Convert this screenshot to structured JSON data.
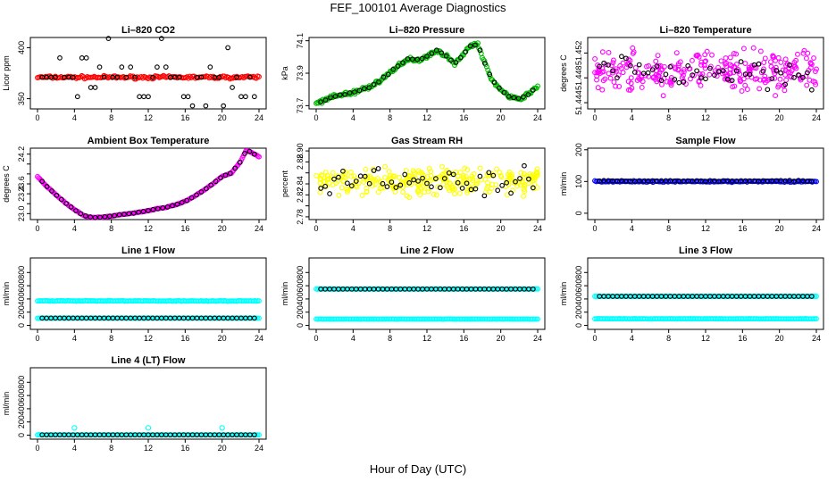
{
  "title": "FEF_100101  Average Diagnostics",
  "xlabel": "Hour of Day (UTC)",
  "colors": {
    "black": "#000000",
    "red": "#ff0000",
    "green": "#00bb00",
    "magenta": "#ff00ff",
    "yellow": "#ffff00",
    "blue": "#0000ff",
    "cyan": "#00ffff"
  },
  "chart_data": [
    {
      "type": "scatter",
      "title": "Li–820 CO2",
      "ylabel": "Licor ppm",
      "xlim": [
        0,
        24
      ],
      "xticks": [
        0,
        4,
        8,
        12,
        16,
        20,
        24
      ],
      "ylim": [
        340,
        410
      ],
      "yticks": [
        350,
        400
      ],
      "ytick_labels": [
        "350",
        "400"
      ],
      "series": [
        {
          "color": "red",
          "pattern": "band",
          "center": 371,
          "spread": 2
        },
        {
          "color": "black",
          "pattern": "discrete",
          "levels": [
            343,
            352,
            361,
            371,
            381,
            390,
            400,
            409
          ],
          "weights": [
            2,
            3,
            1,
            6,
            1,
            3,
            1,
            3
          ]
        }
      ]
    },
    {
      "type": "scatter",
      "title": "Li–820 Pressure",
      "ylabel": "kPa",
      "xlim": [
        0,
        24
      ],
      "xticks": [
        0,
        4,
        8,
        12,
        16,
        20,
        24
      ],
      "ylim": [
        73.68,
        74.12
      ],
      "yticks": [
        73.7,
        73.9,
        74.1
      ],
      "ytick_labels": [
        "73.7",
        "73.9",
        "74.1"
      ],
      "series": [
        {
          "color": "green",
          "pattern": "curve",
          "spread": 0.015,
          "x": [
            0,
            2,
            4,
            6,
            7,
            8,
            9,
            10,
            11,
            12,
            13,
            14,
            15,
            16,
            16.7,
            17.5,
            18,
            19,
            20,
            21,
            22,
            23,
            24
          ],
          "y": [
            73.71,
            73.76,
            73.78,
            73.82,
            73.86,
            73.9,
            73.95,
            73.99,
            73.98,
            74.0,
            74.04,
            74.01,
            73.96,
            74.02,
            74.07,
            74.08,
            74.0,
            73.86,
            73.8,
            73.75,
            73.74,
            73.77,
            73.82
          ]
        },
        {
          "color": "black",
          "pattern": "curve-sparse",
          "spread": 0.01,
          "x": [
            0,
            2,
            4,
            6,
            7,
            8,
            9,
            10,
            11,
            12,
            13,
            14,
            15,
            16,
            16.7,
            17.5,
            18,
            19,
            20,
            21,
            22,
            23,
            24
          ],
          "y": [
            73.71,
            73.76,
            73.78,
            73.82,
            73.86,
            73.9,
            73.95,
            73.99,
            73.98,
            74.0,
            74.04,
            74.01,
            73.96,
            74.02,
            74.07,
            74.08,
            74.0,
            73.86,
            73.8,
            73.75,
            73.74,
            73.77,
            73.82
          ]
        }
      ]
    },
    {
      "type": "scatter",
      "title": "Li–820 Temperature",
      "ylabel": "degrees C",
      "xlim": [
        0,
        24
      ],
      "xticks": [
        0,
        4,
        8,
        12,
        16,
        20,
        24
      ],
      "ylim": [
        51.443,
        51.4545
      ],
      "yticks": [
        51.444,
        51.448,
        51.452
      ],
      "ytick_labels": [
        "51.444",
        "51.448",
        "51.452"
      ],
      "series": [
        {
          "color": "magenta",
          "pattern": "noise",
          "center": 51.449,
          "spread": 0.0045
        },
        {
          "color": "black",
          "pattern": "noise-sparse",
          "center": 51.449,
          "spread": 0.004
        }
      ]
    },
    {
      "type": "scatter",
      "title": "Ambient Box Temperature",
      "ylabel": "degrees C",
      "xlim": [
        0,
        24
      ],
      "xticks": [
        0,
        4,
        8,
        12,
        16,
        20,
        24
      ],
      "ylim": [
        22.88,
        24.32
      ],
      "yticks": [
        23.0,
        23.2,
        23.4,
        23.6,
        23.8,
        24.0,
        24.2
      ],
      "ytick_labels": [
        "23.0",
        "",
        "23.4",
        "23.6",
        "",
        "",
        "24.2"
      ],
      "series": [
        {
          "color": "magenta",
          "pattern": "curve",
          "spread": 0.01,
          "x": [
            0,
            1,
            2,
            3,
            4,
            5,
            6,
            7,
            8,
            9,
            10,
            11,
            12,
            13,
            14,
            15,
            16,
            17,
            18,
            19,
            20,
            21,
            22,
            22.6,
            23,
            23.5,
            24
          ],
          "y": [
            23.75,
            23.55,
            23.38,
            23.22,
            23.08,
            22.96,
            22.92,
            22.93,
            22.95,
            22.98,
            23.0,
            23.03,
            23.06,
            23.1,
            23.13,
            23.18,
            23.25,
            23.35,
            23.47,
            23.6,
            23.75,
            23.82,
            24.05,
            24.27,
            24.25,
            24.2,
            24.15
          ]
        },
        {
          "color": "black",
          "pattern": "curve-sparse",
          "spread": 0.005,
          "x": [
            0,
            1,
            2,
            3,
            4,
            5,
            6,
            7,
            8,
            9,
            10,
            11,
            12,
            13,
            14,
            15,
            16,
            17,
            18,
            19,
            20,
            21,
            22,
            22.6,
            23,
            23.5,
            24
          ],
          "y": [
            23.75,
            23.55,
            23.38,
            23.22,
            23.08,
            22.96,
            22.92,
            22.93,
            22.95,
            22.98,
            23.0,
            23.03,
            23.06,
            23.1,
            23.13,
            23.18,
            23.25,
            23.35,
            23.47,
            23.6,
            23.75,
            23.82,
            24.05,
            24.27,
            24.25,
            24.2,
            24.15
          ]
        }
      ]
    },
    {
      "type": "scatter",
      "title": "Gas Stream RH",
      "ylabel": "percent",
      "xlim": [
        0,
        24
      ],
      "xticks": [
        0,
        4,
        8,
        12,
        16,
        20,
        24
      ],
      "ylim": [
        2.775,
        2.905
      ],
      "yticks": [
        2.78,
        2.8,
        2.82,
        2.84,
        2.86,
        2.88,
        2.9
      ],
      "ytick_labels": [
        "2.78",
        "",
        "2.82",
        "2.84",
        "",
        "2.88",
        "2.90"
      ],
      "series": [
        {
          "color": "yellow",
          "pattern": "noise",
          "center": 2.845,
          "spread": 0.038
        },
        {
          "color": "black",
          "pattern": "noise-sparse",
          "center": 2.843,
          "spread": 0.035
        }
      ]
    },
    {
      "type": "scatter",
      "title": "Sample Flow",
      "ylabel": "ml/min",
      "xlim": [
        0,
        24
      ],
      "xticks": [
        0,
        4,
        8,
        12,
        16,
        20,
        24
      ],
      "ylim": [
        -20,
        205
      ],
      "yticks": [
        0,
        100,
        200
      ],
      "ytick_labels": [
        "0",
        "100",
        "200"
      ],
      "series": [
        {
          "color": "blue",
          "pattern": "band",
          "center": 100,
          "spread": 3
        },
        {
          "color": "black",
          "pattern": "band-sparse",
          "center": 102,
          "spread": 2
        }
      ]
    },
    {
      "type": "scatter",
      "title": "Line 1 Flow",
      "ylabel": "ml/min",
      "xlim": [
        0,
        24
      ],
      "xticks": [
        0,
        4,
        8,
        12,
        16,
        20,
        24
      ],
      "ylim": [
        -60,
        1020
      ],
      "yticks": [
        0,
        200,
        400,
        600,
        800
      ],
      "ytick_labels": [
        "0",
        "200",
        "400",
        "600",
        "800"
      ],
      "series": [
        {
          "color": "cyan",
          "pattern": "band",
          "center": 370,
          "spread": 8
        },
        {
          "color": "cyan",
          "pattern": "band",
          "center": 110,
          "spread": 3
        },
        {
          "color": "black",
          "pattern": "row",
          "center": 110
        }
      ]
    },
    {
      "type": "scatter",
      "title": "Line 2 Flow",
      "ylabel": "ml/min",
      "xlim": [
        0,
        24
      ],
      "xticks": [
        0,
        4,
        8,
        12,
        16,
        20,
        24
      ],
      "ylim": [
        -60,
        1020
      ],
      "yticks": [
        0,
        200,
        400,
        600,
        800
      ],
      "ytick_labels": [
        "0",
        "200",
        "400",
        "600",
        "800"
      ],
      "series": [
        {
          "color": "cyan",
          "pattern": "band",
          "center": 550,
          "spread": 4
        },
        {
          "color": "cyan",
          "pattern": "band",
          "center": 95,
          "spread": 3
        },
        {
          "color": "black",
          "pattern": "row",
          "center": 550
        }
      ]
    },
    {
      "type": "scatter",
      "title": "Line 3 Flow",
      "ylabel": "ml/min",
      "xlim": [
        0,
        24
      ],
      "xticks": [
        0,
        4,
        8,
        12,
        16,
        20,
        24
      ],
      "ylim": [
        -60,
        1020
      ],
      "yticks": [
        0,
        200,
        400,
        600,
        800
      ],
      "ytick_labels": [
        "0",
        "200",
        "400",
        "600",
        "800"
      ],
      "series": [
        {
          "color": "cyan",
          "pattern": "band",
          "center": 440,
          "spread": 4
        },
        {
          "color": "cyan",
          "pattern": "band",
          "center": 100,
          "spread": 3
        },
        {
          "color": "black",
          "pattern": "row",
          "center": 440
        }
      ]
    },
    {
      "type": "scatter",
      "title": "Line 4 (LT) Flow",
      "ylabel": "ml/min",
      "xlim": [
        0,
        24
      ],
      "xticks": [
        0,
        4,
        8,
        12,
        16,
        20,
        24
      ],
      "ylim": [
        -60,
        1020
      ],
      "yticks": [
        0,
        200,
        400,
        600,
        800
      ],
      "ytick_labels": [
        "0",
        "200",
        "400",
        "600",
        "800"
      ],
      "series": [
        {
          "color": "cyan",
          "pattern": "band",
          "center": 5,
          "spread": 2,
          "spikes": [
            [
              4,
              110
            ],
            [
              12,
              110
            ],
            [
              20,
              110
            ]
          ]
        },
        {
          "color": "black",
          "pattern": "row",
          "center": 5
        }
      ]
    }
  ]
}
